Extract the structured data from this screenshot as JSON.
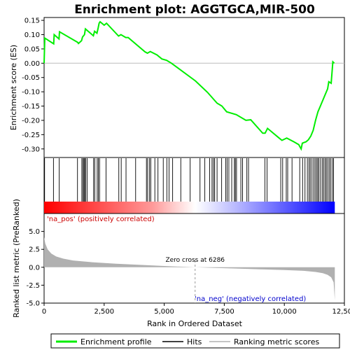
{
  "chart_data": {
    "type": "line",
    "title": "Enrichment plot: AGGTGCA,MIR-500",
    "xlabel": "Rank in Ordered Dataset",
    "xlim": [
      0,
      12500
    ],
    "x_ticks": [
      0,
      2500,
      5000,
      7500,
      10000,
      12500
    ],
    "x_tick_labels": [
      "0",
      "2,500",
      "5,000",
      "7,500",
      "10,000",
      "12,500"
    ],
    "total_genes": 12100,
    "enrichment_panel": {
      "ylabel": "Enrichment score (ES)",
      "ylim": [
        -0.33,
        0.16
      ],
      "y_ticks": [
        -0.3,
        -0.25,
        -0.2,
        -0.15,
        -0.1,
        -0.05,
        0.0,
        0.05,
        0.1,
        0.15
      ],
      "y_tick_labels": [
        "-0.30",
        "-0.25",
        "-0.20",
        "-0.15",
        "-0.10",
        "-0.05",
        "0.00",
        "0.05",
        "0.10",
        "0.15"
      ],
      "series": [
        {
          "name": "Enrichment profile",
          "color": "#00ee00",
          "points": [
            [
              0,
              0.0
            ],
            [
              30,
              0.088
            ],
            [
              400,
              0.068
            ],
            [
              420,
              0.1
            ],
            [
              620,
              0.085
            ],
            [
              640,
              0.11
            ],
            [
              1400,
              0.073
            ],
            [
              1430,
              0.069
            ],
            [
              1560,
              0.079
            ],
            [
              1600,
              0.092
            ],
            [
              1680,
              0.1
            ],
            [
              1720,
              0.12
            ],
            [
              2050,
              0.096
            ],
            [
              2100,
              0.112
            ],
            [
              2200,
              0.105
            ],
            [
              2250,
              0.123
            ],
            [
              2290,
              0.14
            ],
            [
              2330,
              0.145
            ],
            [
              2500,
              0.133
            ],
            [
              2600,
              0.14
            ],
            [
              3100,
              0.095
            ],
            [
              3200,
              0.1
            ],
            [
              3400,
              0.09
            ],
            [
              3500,
              0.09
            ],
            [
              4200,
              0.04
            ],
            [
              4300,
              0.035
            ],
            [
              4420,
              0.041
            ],
            [
              4700,
              0.029
            ],
            [
              4900,
              0.015
            ],
            [
              5100,
              0.01
            ],
            [
              5300,
              0.0
            ],
            [
              6300,
              -0.062
            ],
            [
              6800,
              -0.102
            ],
            [
              7200,
              -0.14
            ],
            [
              7400,
              -0.15
            ],
            [
              7600,
              -0.17
            ],
            [
              8000,
              -0.18
            ],
            [
              8400,
              -0.2
            ],
            [
              8600,
              -0.198
            ],
            [
              9100,
              -0.245
            ],
            [
              9200,
              -0.245
            ],
            [
              9300,
              -0.228
            ],
            [
              9800,
              -0.263
            ],
            [
              9900,
              -0.27
            ],
            [
              10100,
              -0.262
            ],
            [
              10400,
              -0.275
            ],
            [
              10600,
              -0.285
            ],
            [
              10700,
              -0.3
            ],
            [
              10750,
              -0.28
            ],
            [
              10800,
              -0.278
            ],
            [
              10900,
              -0.275
            ],
            [
              11000,
              -0.268
            ],
            [
              11100,
              -0.255
            ],
            [
              11200,
              -0.235
            ],
            [
              11300,
              -0.2
            ],
            [
              11400,
              -0.17
            ],
            [
              11500,
              -0.15
            ],
            [
              11600,
              -0.13
            ],
            [
              11700,
              -0.11
            ],
            [
              11800,
              -0.09
            ],
            [
              11850,
              -0.065
            ],
            [
              11950,
              -0.07
            ],
            [
              12020,
              0.005
            ],
            [
              12080,
              0.0
            ]
          ]
        }
      ]
    },
    "hits_panel": {
      "name": "Hits",
      "hit_ranks": [
        20,
        390,
        630,
        1390,
        1570,
        1620,
        1660,
        1690,
        1730,
        1790,
        2060,
        2110,
        2210,
        2260,
        2310,
        2580,
        3110,
        3210,
        3410,
        3810,
        4260,
        4310,
        4390,
        4440,
        4610,
        4740,
        4960,
        5110,
        5200,
        5350,
        5690,
        6080,
        6490,
        6690,
        6890,
        6990,
        7050,
        7100,
        7200,
        7390,
        7560,
        7620,
        7690,
        7810,
        7920,
        7960,
        8010,
        8190,
        8260,
        8440,
        8510,
        9190,
        9280,
        9850,
        9930,
        10080,
        10140,
        10320,
        10640,
        10760,
        10860,
        10960,
        11030,
        11080,
        11150,
        11220,
        11280,
        11340,
        11390,
        11440,
        11510,
        11580,
        11640,
        11700,
        11750,
        11810,
        11870,
        11930,
        12000,
        12050
      ],
      "color_bar": {
        "stops": [
          {
            "rank": 0,
            "color": "#ff0000"
          },
          {
            "rank": 4500,
            "color": "#ff9999"
          },
          {
            "rank": 6286,
            "color": "#ffffff"
          },
          {
            "rank": 8000,
            "color": "#b8b8ff"
          },
          {
            "rank": 12100,
            "color": "#0000ff"
          }
        ]
      }
    },
    "ranked_metric_panel": {
      "ylabel": "Ranked list metric (PreRanked)",
      "ylim": [
        -5.0,
        7.5
      ],
      "y_ticks": [
        -5.0,
        -2.5,
        0.0,
        2.5,
        5.0
      ],
      "y_tick_labels": [
        "-5.0",
        "-2.5",
        "0.0",
        "2.5",
        "5.0"
      ],
      "fill_color": "#b0b0b0",
      "profile": [
        [
          0,
          4.2
        ],
        [
          50,
          3.3
        ],
        [
          150,
          2.5
        ],
        [
          300,
          1.9
        ],
        [
          500,
          1.5
        ],
        [
          800,
          1.2
        ],
        [
          1200,
          0.95
        ],
        [
          2000,
          0.7
        ],
        [
          3000,
          0.5
        ],
        [
          4000,
          0.33
        ],
        [
          5000,
          0.18
        ],
        [
          6286,
          0.0
        ],
        [
          7000,
          -0.08
        ],
        [
          8000,
          -0.18
        ],
        [
          9000,
          -0.28
        ],
        [
          10000,
          -0.38
        ],
        [
          10800,
          -0.5
        ],
        [
          11300,
          -0.65
        ],
        [
          11600,
          -0.82
        ],
        [
          11800,
          -1.05
        ],
        [
          11950,
          -1.4
        ],
        [
          12050,
          -2.1
        ],
        [
          12100,
          -4.6
        ]
      ],
      "zero_cross_rank": 6286,
      "zero_cross_label": "Zero cross at 6286",
      "pos_label": "'na_pos' (positively correlated)",
      "neg_label": "'na_neg' (negatively correlated)"
    },
    "legend": {
      "placement": "bottom",
      "entries": [
        {
          "label": "Enrichment profile",
          "color": "#00ee00"
        },
        {
          "label": "Hits",
          "color": "#000000"
        },
        {
          "label": "Ranking metric scores",
          "color": "#b0b0b0"
        }
      ]
    }
  }
}
